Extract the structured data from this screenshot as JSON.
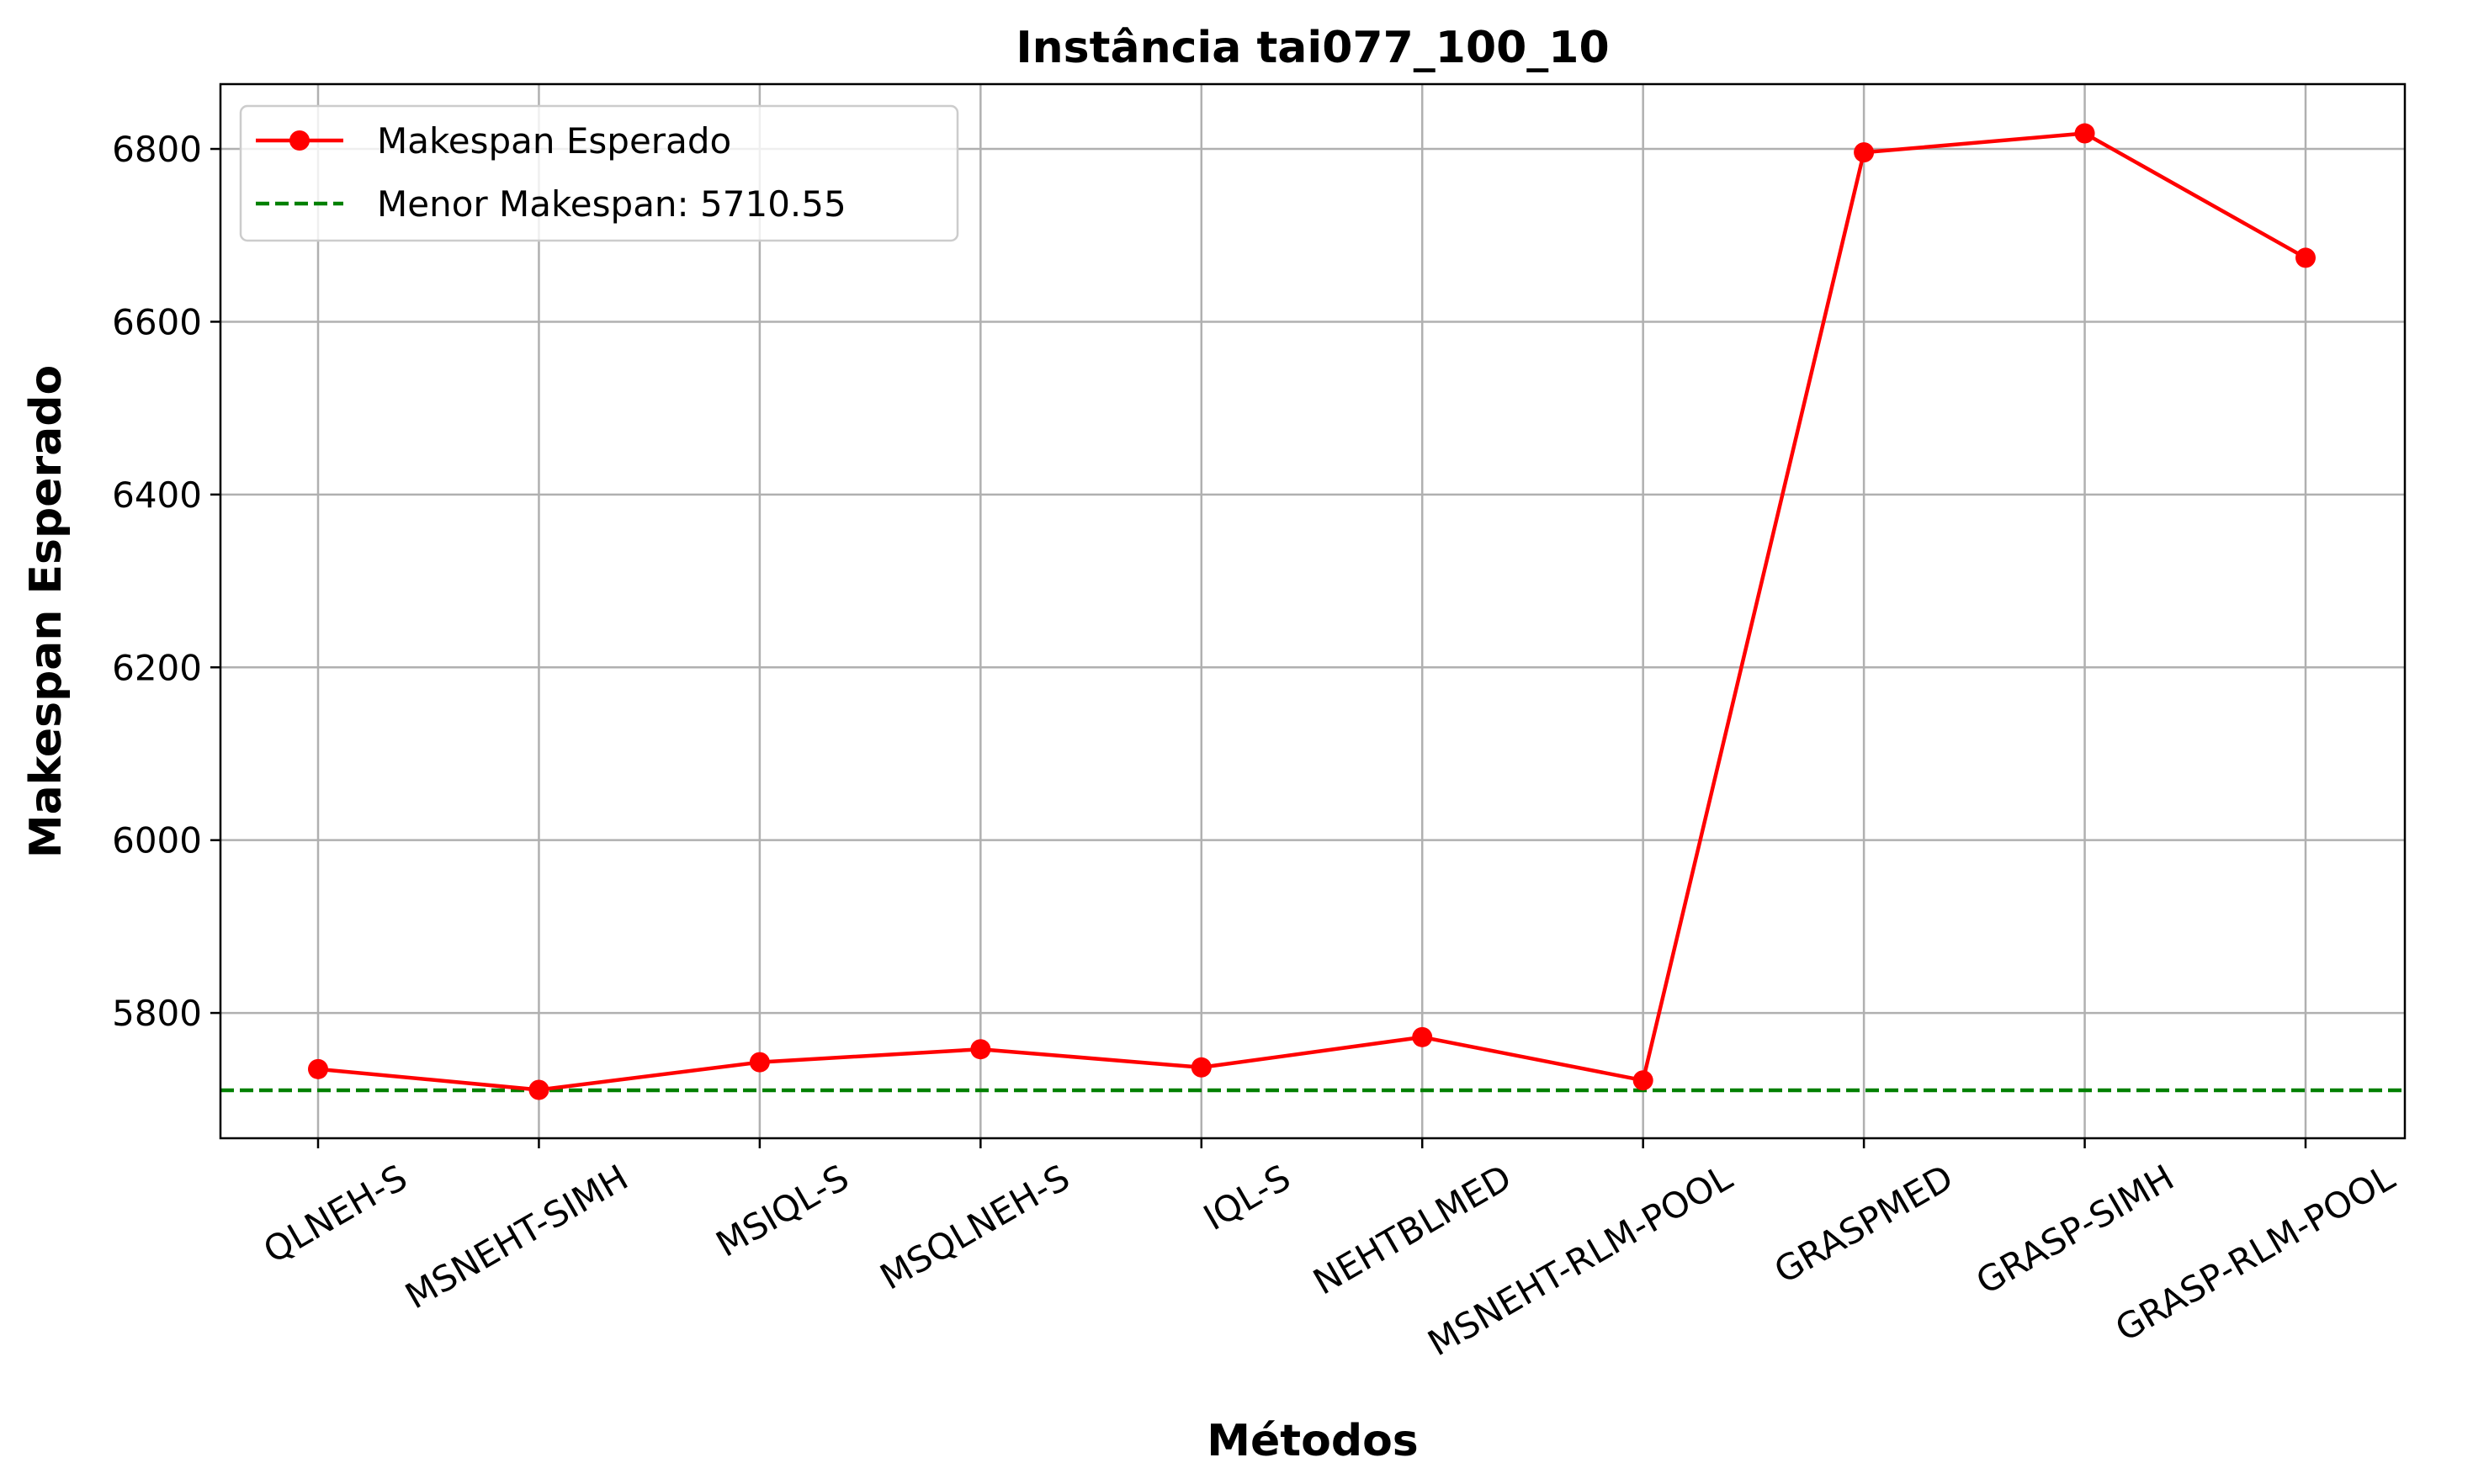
{
  "chart_data": {
    "type": "line",
    "title": "Instância tai077_100_10",
    "xlabel": "Métodos",
    "ylabel": "Makespan Esperado",
    "categories": [
      "QLNEH-S",
      "MSNEHT-SIMH",
      "MSIQL-S",
      "MSQLNEH-S",
      "IQL-S",
      "NEHTBLMED",
      "MSNEHT-RLM-POOL",
      "GRASPMED",
      "GRASP-SIMH",
      "GRASP-RLM-POOL"
    ],
    "series": [
      {
        "name": "Makespan Esperado",
        "color": "#ff0000",
        "values": [
          5735,
          5711,
          5743,
          5758,
          5737,
          5772,
          5722,
          6796,
          6818,
          6674
        ]
      }
    ],
    "reference_line": {
      "label": "Menor Makespan: 5710.55",
      "value": 5710.55,
      "color": "#008000",
      "style": "dashed"
    },
    "yticks": [
      5800,
      6000,
      6200,
      6400,
      6600,
      6800
    ],
    "ylim": [
      5655,
      6875
    ],
    "grid": true,
    "legend_position": "top-left"
  }
}
